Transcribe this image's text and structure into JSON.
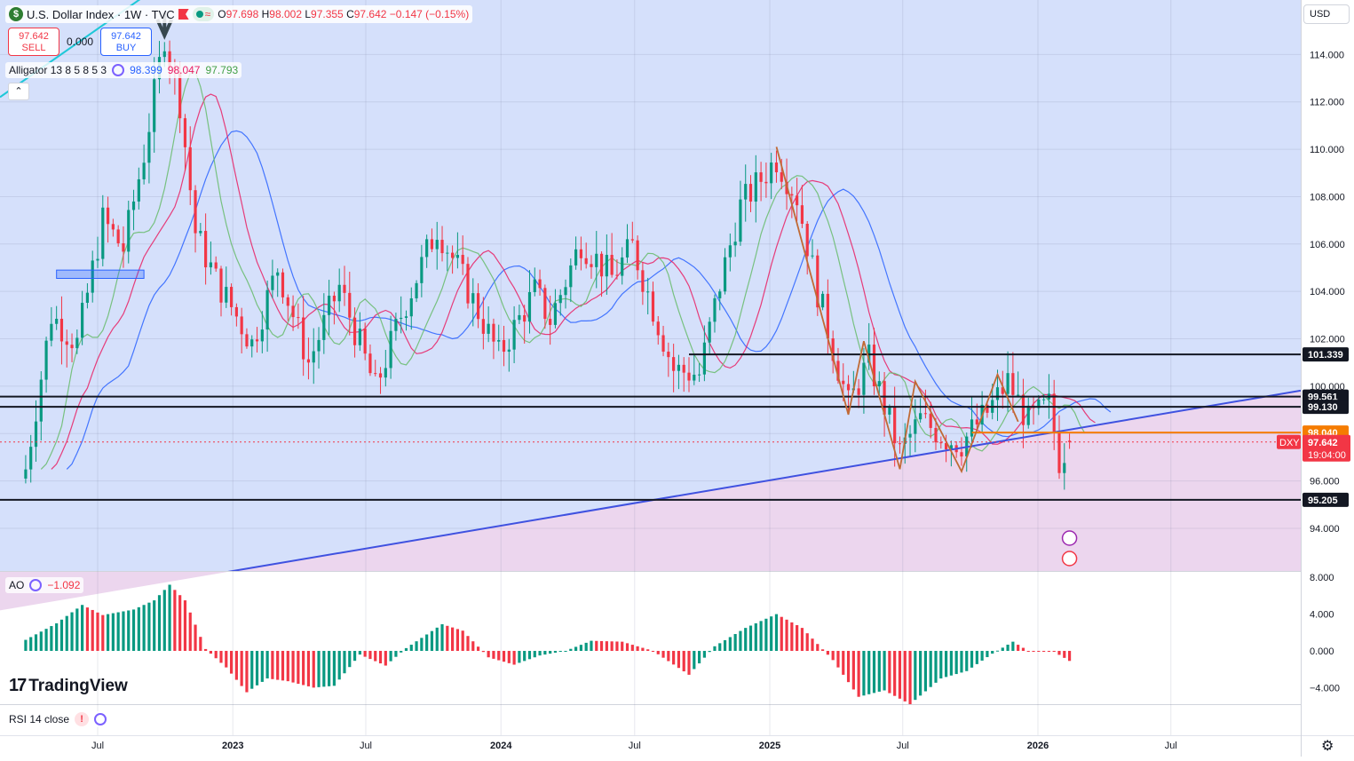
{
  "header": {
    "symbol": "U.S. Dollar Index · 1W · TVC",
    "symbol_icon": "$",
    "ohlc": {
      "o_label": "O",
      "o": "97.698",
      "h_label": "H",
      "h": "98.002",
      "l_label": "L",
      "l": "97.355",
      "c_label": "C",
      "c": "97.642",
      "change": "−0.147 (−0.15%)"
    }
  },
  "trade": {
    "sell_price": "97.642",
    "sell_label": "SELL",
    "spread": "0.000",
    "buy_price": "97.642",
    "buy_label": "BUY"
  },
  "indicators": {
    "alligator": {
      "label": "Alligator 13 8 5 8 5 3",
      "jaw": "98.399",
      "teeth": "98.047",
      "lips": "97.793"
    },
    "ao": {
      "label": "AO",
      "value": "−1.092"
    },
    "rsi": {
      "label": "RSI 14 close"
    }
  },
  "currency": "USD",
  "brand": "TradingView",
  "colors": {
    "bull": "#089981",
    "bear": "#f23645",
    "jaw": "#2962ff",
    "teeth": "#e91e63",
    "lips": "#66bb6a",
    "accent_orange": "#f57c00",
    "trendline": "#3f51e0"
  },
  "chart_data": {
    "type": "candlestick",
    "timeframe": "1W",
    "x_tick_labels": [
      "Jul",
      "2023",
      "Jul",
      "2024",
      "Jul",
      "2025",
      "Jul",
      "2026",
      "Jul"
    ],
    "x_ticks_dates": [
      "2022-07-01",
      "2023-01-01",
      "2023-07-01",
      "2024-01-01",
      "2024-07-01",
      "2025-01-01",
      "2025-07-01",
      "2026-01-01",
      "2026-07-01"
    ],
    "y_ticks": [
      "94.000",
      "96.000",
      "98.000",
      "100.000",
      "102.000",
      "104.000",
      "106.000",
      "108.000",
      "110.000",
      "112.000",
      "114.000"
    ],
    "ylim": [
      92.2,
      116.3
    ],
    "price_path": [
      [
        "2022-03-25",
        96.5
      ],
      [
        "2022-04-29",
        103.0
      ],
      [
        "2022-06-03",
        101.8
      ],
      [
        "2022-07-08",
        107.0
      ],
      [
        "2022-08-05",
        105.8
      ],
      [
        "2022-09-02",
        109.8
      ],
      [
        "2022-09-30",
        114.8
      ],
      [
        "2022-10-21",
        112.0
      ],
      [
        "2022-11-11",
        106.5
      ],
      [
        "2022-12-09",
        104.5
      ],
      [
        "2023-01-27",
        101.8
      ],
      [
        "2023-03-03",
        105.0
      ],
      [
        "2023-04-14",
        101.0
      ],
      [
        "2023-05-26",
        104.2
      ],
      [
        "2023-07-14",
        99.9
      ],
      [
        "2023-08-18",
        103.0
      ],
      [
        "2023-10-06",
        106.7
      ],
      [
        "2023-11-03",
        105.0
      ],
      [
        "2023-12-29",
        101.3
      ],
      [
        "2024-02-16",
        104.0
      ],
      [
        "2024-03-08",
        102.8
      ],
      [
        "2024-04-19",
        106.1
      ],
      [
        "2024-05-31",
        104.6
      ],
      [
        "2024-06-28",
        105.9
      ],
      [
        "2024-08-23",
        100.7
      ],
      [
        "2024-09-27",
        100.5
      ],
      [
        "2024-10-25",
        104.3
      ],
      [
        "2024-11-22",
        107.6
      ],
      [
        "2025-01-10",
        109.6
      ],
      [
        "2025-02-07",
        108.0
      ],
      [
        "2025-03-07",
        104.0
      ],
      [
        "2025-04-18",
        99.2
      ],
      [
        "2025-05-16",
        101.1
      ],
      [
        "2025-06-27",
        97.2
      ],
      [
        "2025-07-25",
        98.6
      ],
      [
        "2025-08-29",
        97.8
      ],
      [
        "2025-09-19",
        97.6
      ],
      [
        "2025-10-24",
        98.9
      ],
      [
        "2025-11-21",
        100.2
      ],
      [
        "2025-12-19",
        98.5
      ],
      [
        "2026-01-16",
        99.2
      ],
      [
        "2026-01-30",
        96.9
      ],
      [
        "2026-02-13",
        97.642
      ]
    ],
    "horizontal_levels": [
      "101.339",
      "99.561",
      "99.130",
      "98.040",
      "95.205"
    ],
    "last_price": {
      "value": "97.642",
      "symbol": "DXY",
      "countdown": "19:04:00"
    },
    "ao": {
      "ylim": [
        -5.8,
        8.6
      ],
      "y_ticks": [
        "8.000",
        "4.000",
        "0.000",
        "−4.000"
      ],
      "path": [
        [
          "2022-03-25",
          1.2
        ],
        [
          "2022-05-06",
          3.0
        ],
        [
          "2022-06-10",
          5.0
        ],
        [
          "2022-07-08",
          3.9
        ],
        [
          "2022-08-19",
          4.5
        ],
        [
          "2022-09-16",
          5.5
        ],
        [
          "2022-10-07",
          7.2
        ],
        [
          "2022-10-28",
          5.5
        ],
        [
          "2022-11-25",
          0.2
        ],
        [
          "2022-12-23",
          -1.8
        ],
        [
          "2023-01-20",
          -4.5
        ],
        [
          "2023-02-17",
          -3.0
        ],
        [
          "2023-03-17",
          -3.3
        ],
        [
          "2023-04-21",
          -4.0
        ],
        [
          "2023-05-19",
          -3.8
        ],
        [
          "2023-06-23",
          -0.4
        ],
        [
          "2023-07-28",
          -1.6
        ],
        [
          "2023-08-25",
          0.3
        ],
        [
          "2023-10-13",
          2.9
        ],
        [
          "2023-11-10",
          2.2
        ],
        [
          "2023-12-15",
          -0.7
        ],
        [
          "2024-01-19",
          -1.5
        ],
        [
          "2024-02-23",
          -0.5
        ],
        [
          "2024-03-29",
          0.0
        ],
        [
          "2024-05-03",
          1.1
        ],
        [
          "2024-06-14",
          1.0
        ],
        [
          "2024-07-26",
          0.0
        ],
        [
          "2024-09-13",
          -2.6
        ],
        [
          "2024-10-18",
          0.5
        ],
        [
          "2024-11-29",
          2.5
        ],
        [
          "2025-01-10",
          4.0
        ],
        [
          "2025-02-14",
          2.5
        ],
        [
          "2025-03-28",
          -1.0
        ],
        [
          "2025-05-02",
          -5.0
        ],
        [
          "2025-06-06",
          -4.3
        ],
        [
          "2025-07-11",
          -5.8
        ],
        [
          "2025-08-22",
          -3.0
        ],
        [
          "2025-09-26",
          -2.2
        ],
        [
          "2025-10-31",
          -0.3
        ],
        [
          "2025-11-28",
          1.0
        ],
        [
          "2025-12-19",
          0.0
        ],
        [
          "2026-01-23",
          -0.1
        ],
        [
          "2026-02-13",
          -1.092
        ]
      ]
    }
  }
}
